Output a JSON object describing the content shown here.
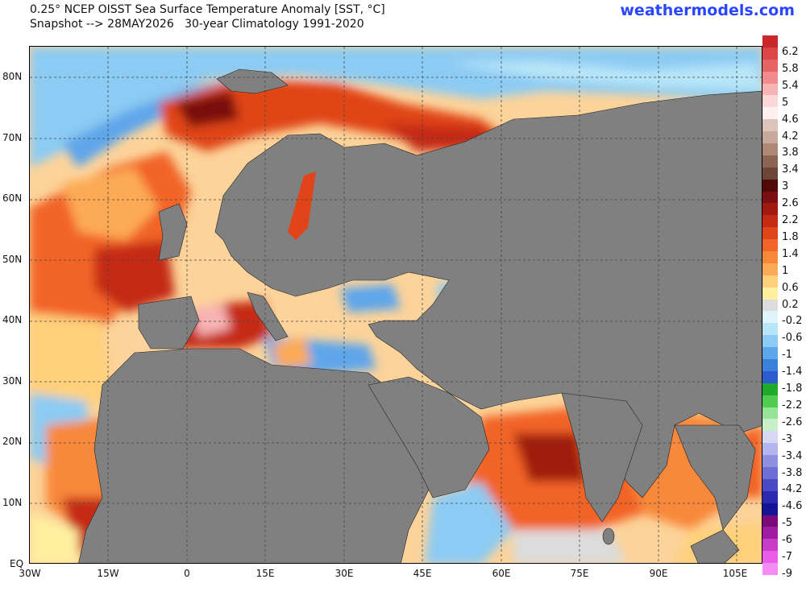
{
  "header": {
    "title_line1": "0.25° NCEP OISST Sea Surface Temperature Anomaly [SST, °C]",
    "title_line2": "Snapshot --> 28MAY2026   30-year Climatology 1991-2020",
    "brand": "weathermodels.com"
  },
  "map": {
    "lat_labels": [
      "80N",
      "70N",
      "60N",
      "50N",
      "40N",
      "30N",
      "20N",
      "10N",
      "EQ"
    ],
    "lon_labels": [
      "30W",
      "15W",
      "0",
      "15E",
      "30E",
      "45E",
      "60E",
      "75E",
      "90E",
      "105E"
    ],
    "land_color": "#808080",
    "ocean_neutral_color": "#d8d8d8"
  },
  "colorbar": {
    "labels": [
      "6.2",
      "5.8",
      "5.4",
      "5",
      "4.6",
      "4.2",
      "3.8",
      "3.4",
      "3",
      "2.6",
      "2.2",
      "1.8",
      "1.4",
      "1",
      "0.6",
      "0.2",
      "-0.2",
      "-0.6",
      "-1",
      "-1.4",
      "-1.8",
      "-2.2",
      "-2.6",
      "-3",
      "-3.4",
      "-3.8",
      "-4.2",
      "-4.6",
      "-5",
      "-6",
      "-7",
      "-9"
    ],
    "colors": [
      "#c82828",
      "#dc4646",
      "#e66464",
      "#f08c8c",
      "#f8b4b4",
      "#fad8d8",
      "#fff0f0",
      "#dcc3bb",
      "#c8a89a",
      "#b08878",
      "#8c6454",
      "#6e4638",
      "#500a0a",
      "#7a1010",
      "#a01a10",
      "#c42a14",
      "#e04418",
      "#f26428",
      "#f8883a",
      "#fcaa55",
      "#fed07c",
      "#fff0a0",
      "#dcdcdc",
      "#dff4fb",
      "#b8e6f8",
      "#8ccbf3",
      "#5ea6ea",
      "#3c80dc",
      "#2a5ccc",
      "#1eaa2a",
      "#50cc50",
      "#96e496",
      "#c8f0c8",
      "#d8d8f4",
      "#b4b4ee",
      "#9090e0",
      "#6e6ed4",
      "#4a4ac4",
      "#2a2ab0",
      "#141496",
      "#7a0a7a",
      "#a01ca0",
      "#c83cc8",
      "#e85ce8",
      "#f58cf5"
    ]
  }
}
